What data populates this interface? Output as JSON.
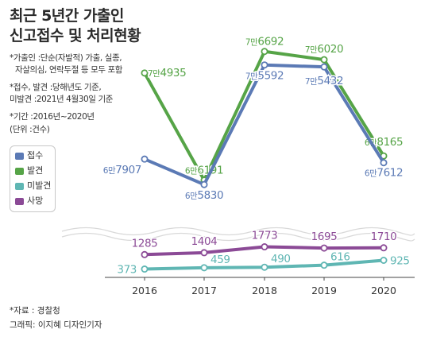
{
  "title_line1": "최근 5년간 가출인",
  "title_line2": "신고접수 및 처리현황",
  "notes": [
    "*가출인 :단순(자발적) 가출, 실종,",
    "자살의심, 연락두절 등 모두 포함",
    "*접수, 발견 :당해년도 기준,",
    "미발견 :2021년 4월30일 기준",
    "*기간 :2016년~2020년",
    "(단위 :건수)"
  ],
  "footer_source": "*자료 : 경찰청",
  "footer_credit": "그래픽: 이지혜 디자인기자",
  "colors": {
    "received": "#5b7ab5",
    "found": "#56a447",
    "not_found": "#5fb6b3",
    "death": "#8b4a96"
  },
  "chart_data": {
    "type": "line",
    "categories": [
      "2016",
      "2017",
      "2018",
      "2019",
      "2020"
    ],
    "legend": [
      "접수",
      "발견",
      "미발견",
      "사망"
    ],
    "legend_placement": "left",
    "grid": false,
    "series": [
      {
        "name": "접수",
        "values": [
          67907,
          65830,
          75592,
          75432,
          67612
        ],
        "labels": [
          [
            "6만",
            "7907"
          ],
          [
            "6만",
            "5830"
          ],
          [
            "7만",
            "5592"
          ],
          [
            "7만",
            "5432"
          ],
          [
            "6만",
            "7612"
          ]
        ]
      },
      {
        "name": "발견",
        "values": [
          74935,
          66191,
          76692,
          76020,
          68165
        ],
        "labels": [
          [
            "7만",
            "4935"
          ],
          [
            "6만",
            "6191"
          ],
          [
            "7만",
            "6692"
          ],
          [
            "7만",
            "6020"
          ],
          [
            "6만",
            "8165"
          ]
        ]
      },
      {
        "name": "미발견",
        "values": [
          373,
          459,
          490,
          616,
          925
        ],
        "labels": [
          [
            "",
            "373"
          ],
          [
            "",
            "459"
          ],
          [
            "",
            "490"
          ],
          [
            "",
            "616"
          ],
          [
            "",
            "925"
          ]
        ]
      },
      {
        "name": "사망",
        "values": [
          1285,
          1404,
          1773,
          1695,
          1710
        ],
        "labels": [
          [
            "",
            "1285"
          ],
          [
            "",
            "1404"
          ],
          [
            "",
            "1773"
          ],
          [
            "",
            "1695"
          ],
          [
            "",
            "1710"
          ]
        ]
      }
    ]
  }
}
